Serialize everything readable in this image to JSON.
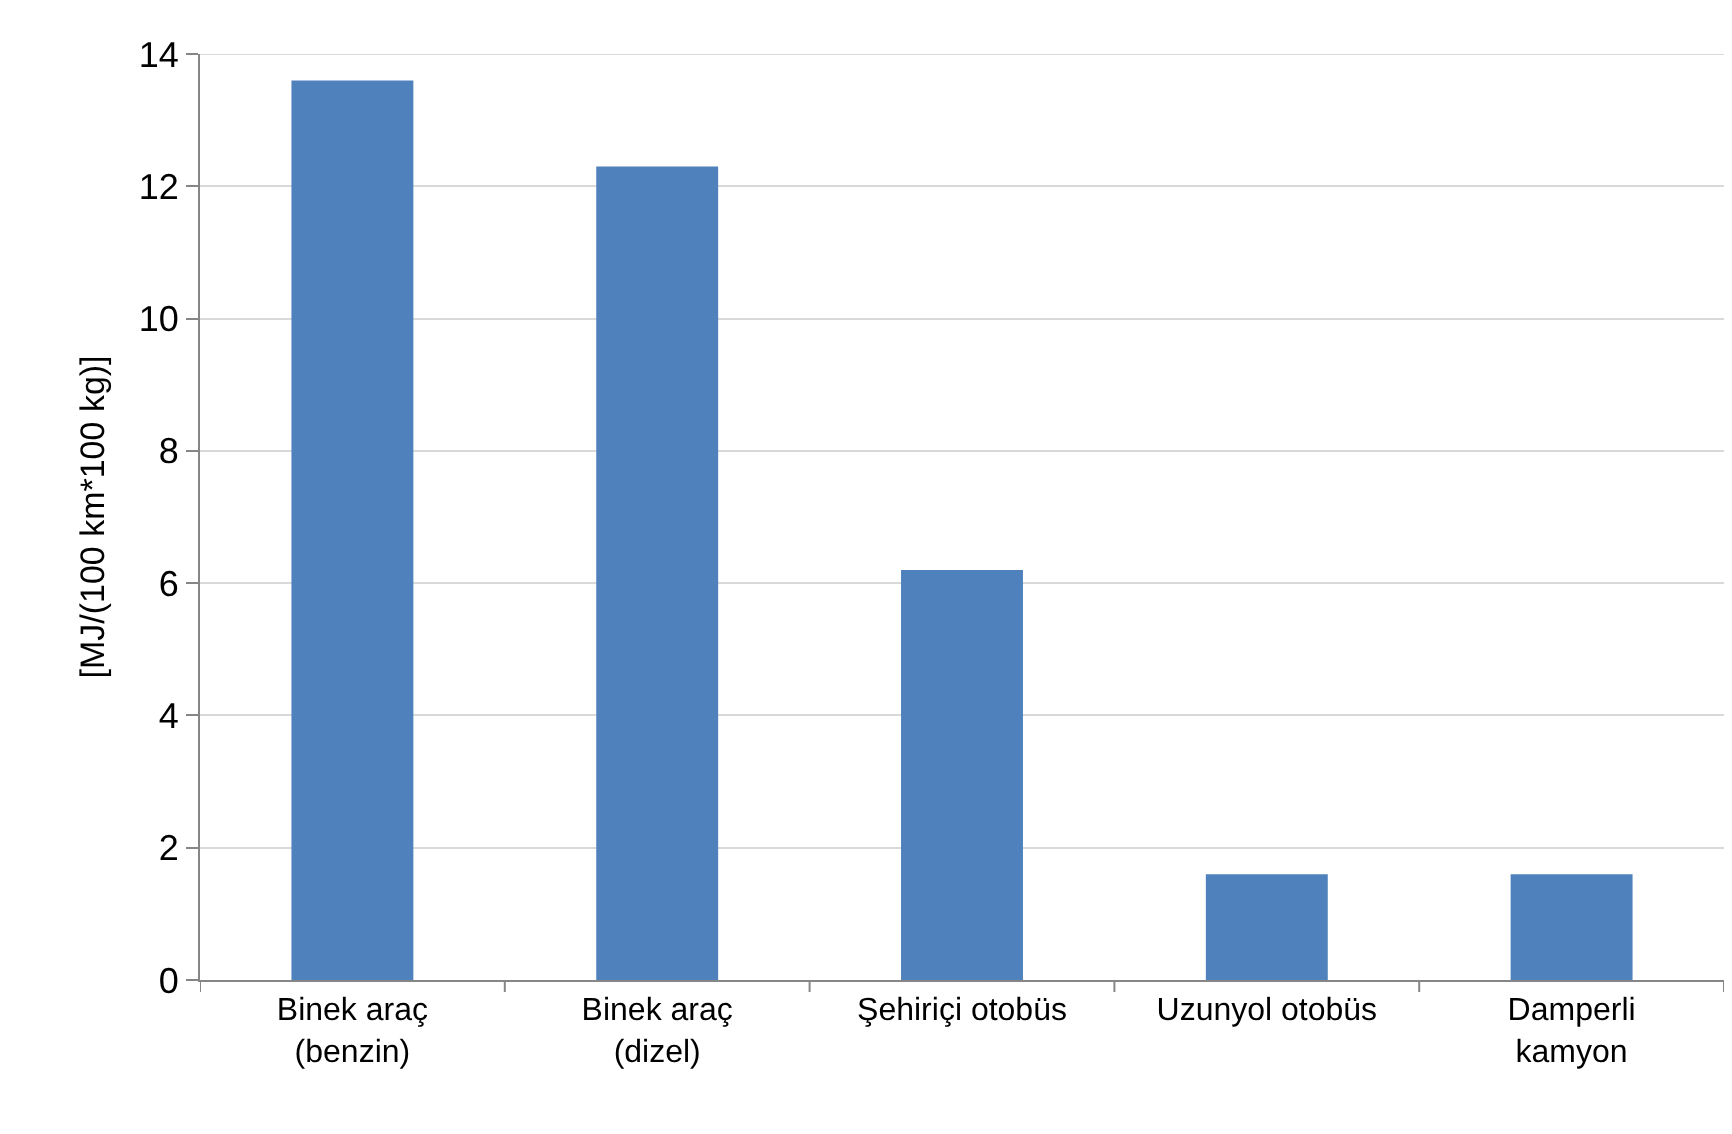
{
  "chart_data": {
    "type": "bar",
    "ylabel": "[MJ/(100 km*100 kg)]",
    "categories": [
      "Binek araç\n(benzin)",
      "Binek araç\n(dizel)",
      "Şehiriçi otobüs",
      "Uzunyol otobüs",
      "Damperli\nkamyon"
    ],
    "values": [
      13.6,
      12.3,
      6.2,
      1.6,
      1.6
    ],
    "color": "#4f81bd",
    "ylim": [
      0,
      14
    ],
    "yticks": [
      0,
      2,
      4,
      6,
      8,
      10,
      12,
      14
    ],
    "grid": "y"
  }
}
